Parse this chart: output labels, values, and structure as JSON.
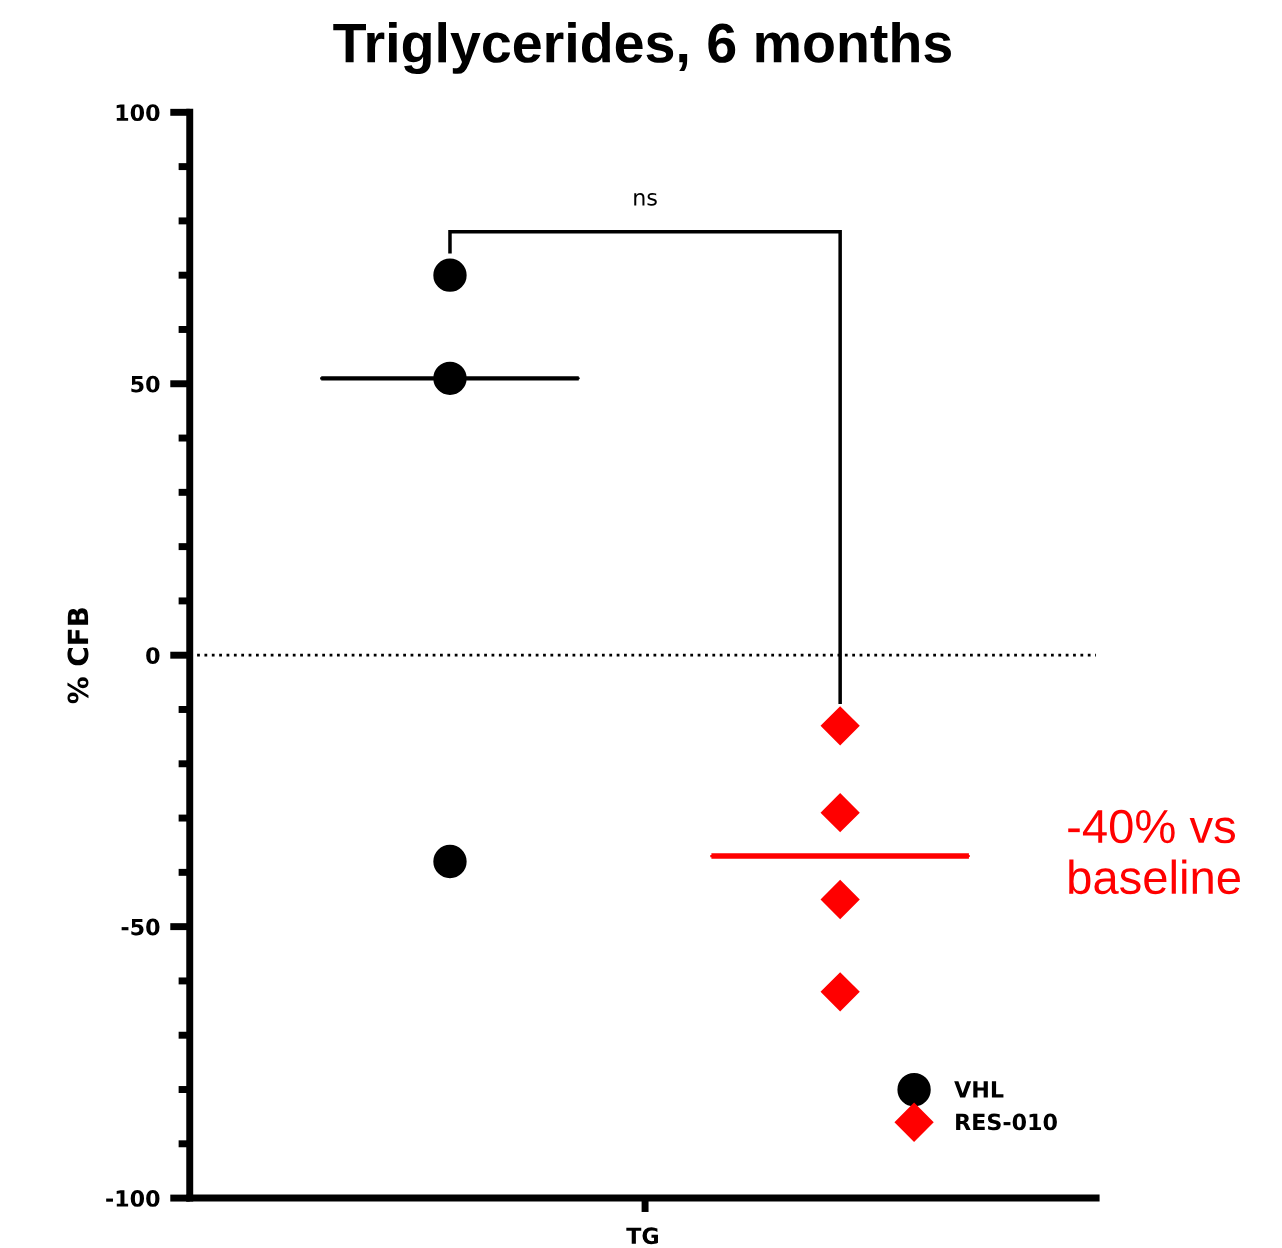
{
  "chart_data": {
    "type": "scatter",
    "title": "Triglycerides, 6 months",
    "ylabel": "% CFB",
    "xlabel": "TG",
    "categories": [
      null,
      null
    ],
    "ylim": [
      -100,
      100
    ],
    "yticks": [
      -100,
      -50,
      0,
      50,
      100
    ],
    "grid": false,
    "legend": "bottom right",
    "ref_lines": [
      {
        "axis": "y",
        "value": 0,
        "line_style": "dotted",
        "color": "#000000"
      }
    ],
    "series": [
      {
        "name": "VHL",
        "color": "#000000",
        "marker": "circle",
        "values": [
          70,
          null
        ]
      },
      {
        "color": "#000000",
        "marker": "circle",
        "values": [
          51,
          null
        ]
      },
      {
        "color": "#000000",
        "marker": "circle",
        "values": [
          -38,
          null
        ]
      },
      {
        "name": "RES-010",
        "color": "#ff0000",
        "marker": "diamond",
        "values": [
          null,
          -13
        ]
      },
      {
        "color": "#ff0000",
        "marker": "diamond",
        "values": [
          null,
          -29
        ]
      },
      {
        "color": "#ff0000",
        "marker": "diamond",
        "values": [
          null,
          -45
        ]
      },
      {
        "color": "#ff0000",
        "marker": "diamond",
        "values": [
          null,
          -62
        ]
      },
      {
        "type": "box",
        "color": "#000000",
        "boxes": [
          {
            "low": 51,
            "q1": 51,
            "median": 51,
            "q3": 51,
            "high": 51
          },
          null
        ]
      },
      {
        "type": "box",
        "color": "#ff0000",
        "boxes": [
          null,
          {
            "low": -37,
            "q1": -37,
            "median": -37,
            "q3": -37,
            "high": -37
          }
        ]
      }
    ],
    "annotations": [
      "ns",
      "-40% vs\nbaseline"
    ]
  }
}
